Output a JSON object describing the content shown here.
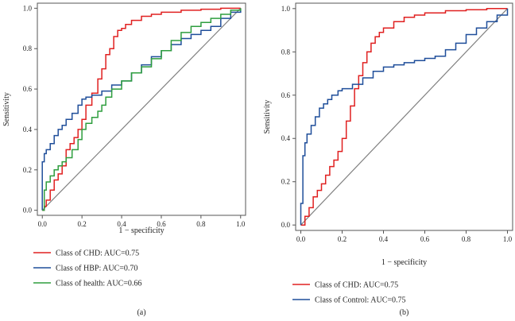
{
  "chart_data": [
    {
      "type": "line",
      "panel_label": "(a)",
      "xlabel": "1 − specificity",
      "ylabel": "Sensitivity",
      "xlim": [
        0,
        1
      ],
      "ylim": [
        0,
        1
      ],
      "xticks": [
        "0.0",
        "0.2",
        "0.4",
        "0.6",
        "0.8",
        "1.0"
      ],
      "yticks": [
        "0.0",
        "0.2",
        "0.4",
        "0.6",
        "0.8",
        "1.0"
      ],
      "legend_position": "below",
      "reference_line": {
        "color": "#808080"
      },
      "series": [
        {
          "name": "Class of CHD: AUC=0.75",
          "color": "#e02020",
          "x": [
            0,
            0.01,
            0.02,
            0.04,
            0.06,
            0.08,
            0.1,
            0.12,
            0.14,
            0.16,
            0.18,
            0.2,
            0.22,
            0.25,
            0.28,
            0.3,
            0.32,
            0.34,
            0.36,
            0.38,
            0.4,
            0.42,
            0.45,
            0.5,
            0.55,
            0.6,
            0.7,
            0.8,
            0.9,
            1.0
          ],
          "y": [
            0,
            0.02,
            0.05,
            0.1,
            0.15,
            0.18,
            0.22,
            0.3,
            0.33,
            0.36,
            0.4,
            0.45,
            0.52,
            0.58,
            0.65,
            0.7,
            0.77,
            0.8,
            0.86,
            0.89,
            0.9,
            0.92,
            0.94,
            0.96,
            0.97,
            0.98,
            0.99,
            0.995,
            1.0,
            1.0
          ]
        },
        {
          "name": "Class of HBP: AUC=0.70",
          "color": "#1f4e9a",
          "x": [
            0,
            0,
            0.01,
            0.02,
            0.04,
            0.06,
            0.08,
            0.1,
            0.12,
            0.15,
            0.18,
            0.2,
            0.22,
            0.25,
            0.3,
            0.35,
            0.4,
            0.45,
            0.5,
            0.55,
            0.6,
            0.65,
            0.7,
            0.75,
            0.8,
            0.85,
            0.9,
            0.95,
            1.0
          ],
          "y": [
            0,
            0.24,
            0.28,
            0.3,
            0.33,
            0.37,
            0.4,
            0.42,
            0.45,
            0.48,
            0.52,
            0.55,
            0.56,
            0.57,
            0.59,
            0.62,
            0.64,
            0.68,
            0.72,
            0.76,
            0.79,
            0.82,
            0.85,
            0.87,
            0.89,
            0.91,
            0.95,
            0.98,
            1.0
          ]
        },
        {
          "name": "Class of health: AUC=0.66",
          "color": "#2e9e3e",
          "x": [
            0,
            0.01,
            0.02,
            0.04,
            0.06,
            0.08,
            0.1,
            0.12,
            0.15,
            0.18,
            0.2,
            0.22,
            0.25,
            0.28,
            0.3,
            0.32,
            0.35,
            0.4,
            0.45,
            0.5,
            0.55,
            0.6,
            0.65,
            0.7,
            0.75,
            0.8,
            0.85,
            0.9,
            0.95,
            1.0
          ],
          "y": [
            0,
            0.1,
            0.14,
            0.17,
            0.2,
            0.22,
            0.24,
            0.26,
            0.3,
            0.35,
            0.4,
            0.43,
            0.46,
            0.49,
            0.52,
            0.56,
            0.6,
            0.64,
            0.68,
            0.71,
            0.75,
            0.79,
            0.84,
            0.88,
            0.91,
            0.93,
            0.95,
            0.97,
            0.99,
            1.0
          ]
        }
      ]
    },
    {
      "type": "line",
      "panel_label": "(b)",
      "xlabel": "1 − specificity",
      "ylabel": "Sensitivity",
      "xlim": [
        0,
        1
      ],
      "ylim": [
        0,
        1
      ],
      "xticks": [
        "0.0",
        "0.2",
        "0.4",
        "0.6",
        "0.8",
        "1.0"
      ],
      "yticks": [
        "0.0",
        "0.2",
        "0.4",
        "0.6",
        "0.8",
        "1.0"
      ],
      "legend_position": "below",
      "reference_line": {
        "color": "#808080"
      },
      "series": [
        {
          "name": "Class of CHD: AUC=0.75",
          "color": "#e02020",
          "x": [
            0,
            0.02,
            0.04,
            0.06,
            0.08,
            0.1,
            0.12,
            0.14,
            0.16,
            0.18,
            0.2,
            0.22,
            0.24,
            0.26,
            0.28,
            0.3,
            0.32,
            0.34,
            0.36,
            0.38,
            0.4,
            0.45,
            0.5,
            0.55,
            0.6,
            0.7,
            0.8,
            0.9,
            1.0
          ],
          "y": [
            0,
            0.04,
            0.08,
            0.13,
            0.16,
            0.19,
            0.23,
            0.27,
            0.3,
            0.34,
            0.4,
            0.48,
            0.55,
            0.63,
            0.69,
            0.75,
            0.8,
            0.84,
            0.87,
            0.89,
            0.91,
            0.94,
            0.96,
            0.97,
            0.98,
            0.99,
            0.995,
            1.0,
            1.0
          ]
        },
        {
          "name": "Class of Control: AUC=0.75",
          "color": "#1f4e9a",
          "x": [
            0,
            0,
            0.01,
            0.02,
            0.03,
            0.05,
            0.07,
            0.09,
            0.11,
            0.13,
            0.15,
            0.18,
            0.2,
            0.25,
            0.3,
            0.35,
            0.4,
            0.45,
            0.5,
            0.55,
            0.6,
            0.65,
            0.7,
            0.75,
            0.8,
            0.85,
            0.9,
            0.95,
            1.0
          ],
          "y": [
            0,
            0.1,
            0.32,
            0.38,
            0.42,
            0.46,
            0.5,
            0.54,
            0.56,
            0.58,
            0.6,
            0.62,
            0.63,
            0.65,
            0.68,
            0.71,
            0.73,
            0.74,
            0.75,
            0.76,
            0.77,
            0.78,
            0.81,
            0.84,
            0.88,
            0.91,
            0.94,
            0.97,
            1.0
          ]
        }
      ]
    }
  ]
}
